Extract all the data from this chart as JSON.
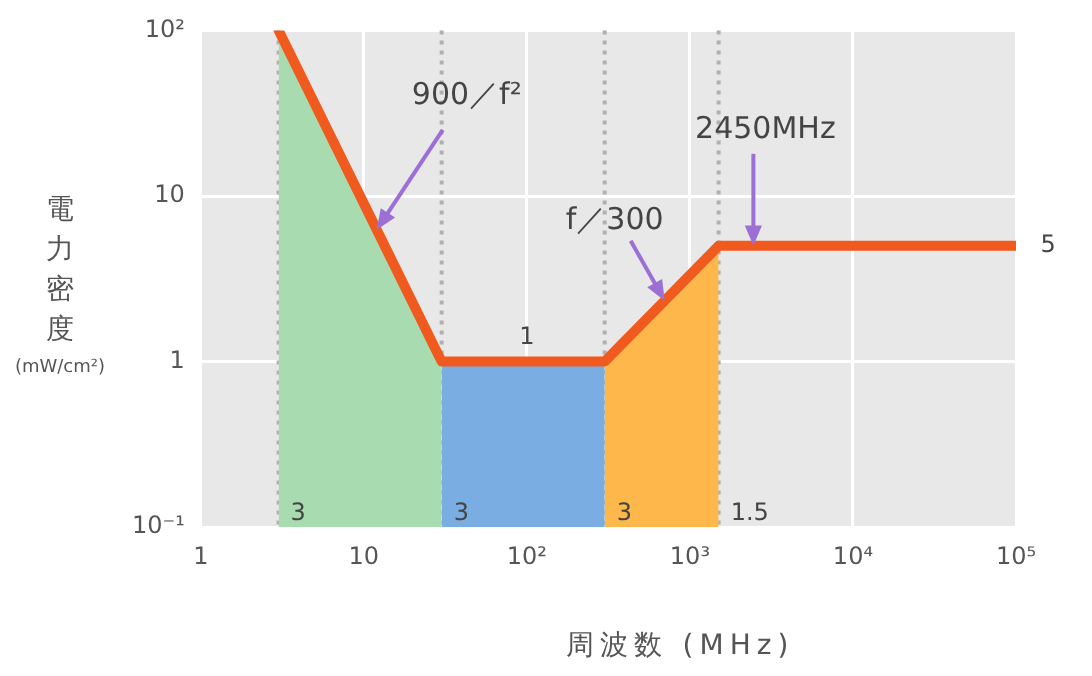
{
  "chart_data": {
    "type": "line",
    "xlabel": "周波数 (MHz)",
    "ylabel": "電力密度 (mW/cm²)",
    "log": "xy",
    "grid": true,
    "legend": false,
    "marker": "none",
    "xlim": [
      1,
      100000
    ],
    "xticks": [
      1,
      10,
      {
        "value": 100,
        "label": "10²"
      },
      {
        "value": 1000,
        "label": "10³"
      },
      {
        "value": 10000,
        "label": "10⁴"
      },
      {
        "value": 100000,
        "label": "10⁵"
      }
    ],
    "ylim": [
      0.1,
      100
    ],
    "yticks": [
      {
        "value": 0.1,
        "label": "10⁻¹"
      },
      1,
      10,
      {
        "value": 100,
        "label": "10²"
      }
    ],
    "series": [
      {
        "type": "area",
        "color": "#a8dbb0",
        "x": [
          3,
          30
        ],
        "values": [
          100,
          1
        ]
      },
      {
        "type": "area",
        "color": "#7aaee3",
        "x": [
          30,
          300
        ],
        "values": [
          1,
          1
        ]
      },
      {
        "type": "area",
        "color": "#fdb74a",
        "x": [
          300,
          1500
        ],
        "values": [
          1,
          5
        ]
      },
      {
        "type": "line",
        "color": "#f05a1e",
        "x": [
          3,
          30,
          300,
          1500,
          100000
        ],
        "values": [
          100,
          1,
          1,
          5,
          5
        ]
      }
    ],
    "ref_lines": [
      {
        "axis": "x",
        "value": 3,
        "color": "#b0b0b0",
        "line_style": "dotted"
      },
      {
        "axis": "x",
        "value": 30,
        "color": "#b0b0b0",
        "line_style": "dotted"
      },
      {
        "axis": "x",
        "value": 300,
        "color": "#b0b0b0",
        "line_style": "dotted"
      },
      {
        "axis": "x",
        "value": 1500,
        "color": "#b0b0b0",
        "line_style": "dotted"
      }
    ],
    "annotations": [
      {
        "text": "900／f²",
        "x": 12,
        "y": 6.25
      },
      {
        "text": "f／300",
        "x": 700,
        "y": 2.33
      },
      {
        "text": "2450MHz",
        "x": 2450,
        "y": 5
      },
      {
        "text": "3",
        "x": 3,
        "y": 0.12
      },
      {
        "text": "3",
        "x": 30,
        "y": 0.12
      },
      {
        "text": "3",
        "x": 300,
        "y": 0.12
      },
      {
        "text": "1.5",
        "x": 1500,
        "y": 0.12
      },
      {
        "text": "1",
        "x": 100,
        "y": 1
      },
      {
        "text": "5",
        "x": 100000,
        "y": 5
      }
    ]
  }
}
